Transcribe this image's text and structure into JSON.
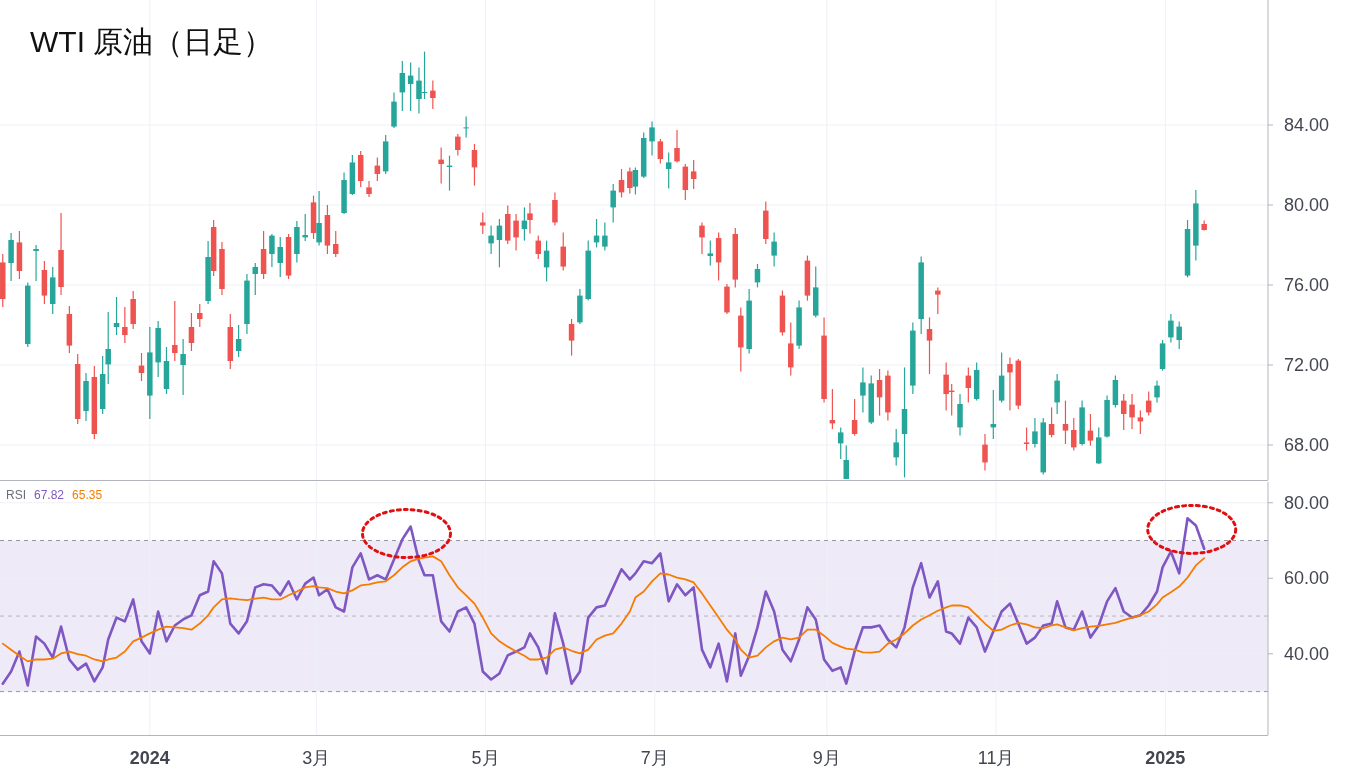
{
  "chart_data": [
    {
      "type": "candlestick",
      "title": "WTI 原油（日足）",
      "colors": [
        "#ef5350",
        "#26a69a",
        "#ef5350",
        "#26a69a",
        "#26a69a",
        "#ef5350",
        "#26a69a",
        "#ef5350",
        "#ef5350",
        "#ef5350",
        "#26a69a",
        "#ef5350",
        "#26a69a",
        "#26a69a",
        "#26a69a",
        "#ef5350",
        "#ef5350",
        "#ef5350",
        "#26a69a",
        "#26a69a",
        "#26a69a",
        "#ef5350",
        "#26a69a",
        "#ef5350",
        "#ef5350",
        "#26a69a",
        "#ef5350",
        "#ef5350",
        "#ef5350",
        "#26a69a",
        "#26a69a",
        "#26a69a",
        "#ef5350",
        "#26a69a",
        "#26a69a",
        "#ef5350",
        "#26a69a",
        "#26a69a",
        "#ef5350",
        "#26a69a",
        "#ef5350",
        "#ef5350",
        "#26a69a",
        "#26a69a",
        "#ef5350",
        "#ef5350",
        "#ef5350",
        "#26a69a",
        "#26a69a",
        "#26a69a",
        "#26a69a",
        "#26a69a",
        "#26a69a",
        "#ef5350",
        "#ef5350",
        "#26a69a",
        "#ef5350",
        "#26a69a",
        "#ef5350",
        "#ef5350",
        "#26a69a",
        "#26a69a",
        "#ef5350",
        "#ef5350",
        "#26a69a",
        "#ef5350",
        "#ef5350",
        "#26a69a",
        "#ef5350",
        "#ef5350",
        "#ef5350",
        "#26a69a",
        "#26a69a",
        "#26a69a",
        "#26a69a",
        "#26a69a",
        "#ef5350",
        "#ef5350",
        "#26a69a",
        "#26a69a",
        "#26a69a",
        "#ef5350",
        "#26a69a",
        "#ef5350",
        "#ef5350",
        "#ef5350",
        "#ef5350",
        "#26a69a",
        "#ef5350",
        "#ef5350",
        "#ef5350",
        "#ef5350",
        "#26a69a",
        "#26a69a",
        "#ef5350",
        "#26a69a",
        "#ef5350",
        "#ef5350",
        "#26a69a",
        "#ef5350",
        "#26a69a",
        "#ef5350",
        "#ef5350",
        "#26a69a",
        "#26a69a",
        "#ef5350",
        "#26a69a",
        "#26a69a",
        "#ef5350",
        "#ef5350",
        "#26a69a",
        "#26a69a",
        "#26a69a",
        "#26a69a",
        "#ef5350",
        "#ef5350",
        "#ef5350",
        "#ef5350",
        "#26a69a",
        "#ef5350",
        "#26a69a",
        "#ef5350",
        "#26a69a",
        "#26a69a",
        "#ef5350",
        "#ef5350",
        "#ef5350",
        "#26a69a",
        "#26a69a",
        "#ef5350",
        "#26a69a",
        "#ef5350",
        "#ef5350",
        "#26a69a",
        "#ef5350",
        "#26a69a",
        "#26a69a",
        "#26a69a",
        "#ef5350",
        "#ef5350",
        "#ef5350",
        "#ef5350",
        "#26a69a",
        "#26a69a",
        "#26a69a",
        "#26a69a",
        "#26a69a",
        "#26a69a",
        "#ef5350"
      ],
      "x": [
        "2023-11-09",
        "2023-11-12",
        "2023-11-15",
        "2023-11-18",
        "2023-11-21",
        "2023-11-24",
        "2023-11-27",
        "2023-11-30",
        "2023-12-03",
        "2023-12-06",
        "2023-12-09",
        "2023-12-12",
        "2023-12-15",
        "2023-12-17",
        "2023-12-20",
        "2023-12-23",
        "2023-12-26",
        "2023-12-29",
        "2024-01-01",
        "2024-01-04",
        "2024-01-07",
        "2024-01-10",
        "2024-01-13",
        "2024-01-16",
        "2024-01-19",
        "2024-01-22",
        "2024-01-24",
        "2024-01-27",
        "2024-01-30",
        "2024-02-02",
        "2024-02-05",
        "2024-02-08",
        "2024-02-11",
        "2024-02-14",
        "2024-02-17",
        "2024-02-20",
        "2024-02-23",
        "2024-02-26",
        "2024-02-29",
        "2024-03-02",
        "2024-03-05",
        "2024-03-08",
        "2024-03-11",
        "2024-03-14",
        "2024-03-17",
        "2024-03-20",
        "2024-03-23",
        "2024-03-26",
        "2024-03-29",
        "2024-04-01",
        "2024-04-04",
        "2024-04-07",
        "2024-04-09",
        "2024-04-12",
        "2024-04-15",
        "2024-04-18",
        "2024-04-21",
        "2024-04-24",
        "2024-04-27",
        "2024-04-30",
        "2024-05-03",
        "2024-05-06",
        "2024-05-09",
        "2024-05-12",
        "2024-05-15",
        "2024-05-17",
        "2024-05-20",
        "2024-05-23",
        "2024-05-26",
        "2024-05-29",
        "2024-06-01",
        "2024-06-04",
        "2024-06-07",
        "2024-06-10",
        "2024-06-13",
        "2024-06-16",
        "2024-06-19",
        "2024-06-22",
        "2024-06-24",
        "2024-06-27",
        "2024-06-30",
        "2024-07-03",
        "2024-07-06",
        "2024-07-09",
        "2024-07-12",
        "2024-07-15",
        "2024-07-18",
        "2024-07-21",
        "2024-07-24",
        "2024-07-27",
        "2024-07-30",
        "2024-08-01",
        "2024-08-04",
        "2024-08-07",
        "2024-08-10",
        "2024-08-13",
        "2024-08-16",
        "2024-08-19",
        "2024-08-22",
        "2024-08-25",
        "2024-08-28",
        "2024-08-31",
        "2024-09-03",
        "2024-09-06",
        "2024-09-08",
        "2024-09-11",
        "2024-09-14",
        "2024-09-17",
        "2024-09-20",
        "2024-09-23",
        "2024-09-26",
        "2024-09-29",
        "2024-10-02",
        "2024-10-05",
        "2024-10-08",
        "2024-10-11",
        "2024-10-14",
        "2024-10-16",
        "2024-10-19",
        "2024-10-22",
        "2024-10-25",
        "2024-10-28",
        "2024-10-31",
        "2024-11-03",
        "2024-11-06",
        "2024-11-09",
        "2024-11-12",
        "2024-11-15",
        "2024-11-18",
        "2024-11-21",
        "2024-11-23",
        "2024-11-26",
        "2024-11-29",
        "2024-12-02",
        "2024-12-05",
        "2024-12-08",
        "2024-12-11",
        "2024-12-14",
        "2024-12-17",
        "2024-12-20",
        "2024-12-23",
        "2024-12-26",
        "2024-12-29",
        "2024-12-31",
        "2025-01-03",
        "2025-01-06",
        "2025-01-09",
        "2025-01-12",
        "2025-01-15"
      ],
      "ohlc": [
        [
          77.13,
          77.55,
          74.9,
          75.3
        ],
        [
          77.1,
          78.6,
          76.2,
          78.25
        ],
        [
          78.13,
          78.7,
          76.3,
          76.7
        ],
        [
          73.05,
          76.13,
          72.9,
          75.97
        ],
        [
          77.7,
          78.0,
          76.2,
          77.8
        ],
        [
          76.75,
          77.2,
          75.05,
          75.47
        ],
        [
          75.05,
          76.9,
          74.55,
          76.38
        ],
        [
          77.75,
          79.6,
          75.5,
          75.9
        ],
        [
          74.55,
          74.95,
          72.6,
          72.97
        ],
        [
          72.05,
          72.55,
          69.05,
          69.3
        ],
        [
          69.7,
          71.6,
          69.2,
          71.2
        ],
        [
          71.4,
          71.95,
          68.3,
          68.55
        ],
        [
          69.8,
          72.45,
          69.55,
          71.55
        ],
        [
          72.03,
          74.65,
          71.05,
          72.8
        ],
        [
          73.9,
          75.4,
          73.5,
          74.1
        ],
        [
          73.9,
          74.9,
          73.1,
          73.5
        ],
        [
          75.3,
          75.7,
          73.8,
          74.05
        ],
        [
          71.97,
          72.6,
          71.2,
          71.6
        ],
        [
          70.47,
          73.9,
          69.3,
          72.63
        ],
        [
          72.13,
          74.2,
          71.4,
          73.85
        ],
        [
          70.8,
          72.9,
          70.55,
          72.2
        ],
        [
          73.0,
          75.2,
          72.2,
          72.6
        ],
        [
          72.0,
          73.3,
          70.5,
          72.55
        ],
        [
          73.9,
          74.6,
          72.7,
          73.1
        ],
        [
          74.6,
          75.05,
          73.9,
          74.3
        ],
        [
          75.2,
          78.2,
          75.05,
          77.4
        ],
        [
          78.9,
          79.25,
          76.45,
          76.7
        ],
        [
          77.8,
          78.15,
          75.5,
          75.8
        ],
        [
          73.9,
          74.55,
          71.8,
          72.2
        ],
        [
          72.7,
          74.0,
          72.4,
          73.3
        ],
        [
          74.05,
          76.55,
          73.55,
          76.22
        ],
        [
          76.55,
          77.1,
          75.5,
          76.9
        ],
        [
          77.8,
          78.7,
          76.3,
          76.55
        ],
        [
          77.55,
          78.55,
          76.9,
          78.47
        ],
        [
          77.1,
          78.4,
          76.4,
          77.9
        ],
        [
          78.4,
          78.55,
          76.3,
          76.47
        ],
        [
          77.55,
          79.2,
          77.13,
          78.9
        ],
        [
          78.38,
          79.55,
          78.2,
          78.5
        ],
        [
          80.13,
          80.47,
          78.3,
          78.6
        ],
        [
          78.13,
          80.7,
          77.97,
          79.1
        ],
        [
          79.5,
          80.0,
          77.55,
          77.97
        ],
        [
          78.05,
          78.7,
          77.4,
          77.55
        ],
        [
          79.6,
          81.63,
          79.55,
          81.25
        ],
        [
          80.55,
          82.5,
          80.5,
          82.13
        ],
        [
          82.5,
          82.7,
          80.9,
          81.2
        ],
        [
          80.88,
          81.2,
          80.4,
          80.55
        ],
        [
          81.97,
          82.38,
          81.2,
          81.55
        ],
        [
          81.68,
          83.5,
          81.55,
          83.18
        ],
        [
          83.92,
          85.63,
          83.85,
          85.17
        ],
        [
          85.63,
          87.2,
          84.7,
          86.6
        ],
        [
          86.05,
          87.13,
          84.7,
          86.47
        ],
        [
          85.3,
          86.88,
          84.58,
          86.22
        ],
        [
          85.6,
          87.67,
          85.3,
          85.65
        ],
        [
          85.72,
          86.22,
          84.8,
          85.35
        ],
        [
          82.27,
          82.88,
          81.08,
          82.05
        ],
        [
          81.9,
          82.47,
          80.72,
          81.97
        ],
        [
          83.42,
          83.55,
          82.47,
          82.75
        ],
        [
          83.85,
          84.42,
          83.38,
          83.88
        ],
        [
          82.75,
          83.05,
          80.97,
          81.88
        ],
        [
          79.13,
          79.63,
          78.55,
          78.97
        ],
        [
          78.08,
          78.97,
          77.55,
          78.47
        ],
        [
          78.25,
          79.3,
          76.88,
          78.97
        ],
        [
          79.55,
          79.97,
          78.05,
          78.22
        ],
        [
          79.22,
          79.55,
          77.72,
          78.38
        ],
        [
          78.8,
          79.88,
          78.22,
          79.22
        ],
        [
          79.58,
          80.1,
          78.58,
          79.25
        ],
        [
          78.22,
          78.47,
          77.3,
          77.55
        ],
        [
          76.88,
          78.22,
          76.18,
          77.72
        ],
        [
          80.25,
          80.63,
          78.97,
          79.13
        ],
        [
          77.92,
          78.63,
          76.72,
          76.92
        ],
        [
          74.05,
          74.3,
          72.47,
          73.22
        ],
        [
          74.13,
          75.8,
          74.05,
          75.47
        ],
        [
          75.3,
          78.22,
          75.22,
          77.72
        ],
        [
          78.13,
          79.3,
          77.88,
          78.47
        ],
        [
          77.92,
          79.13,
          77.72,
          78.47
        ],
        [
          79.88,
          81.05,
          79.13,
          80.72
        ],
        [
          81.25,
          81.8,
          80.38,
          80.63
        ],
        [
          81.68,
          81.88,
          80.58,
          80.85
        ],
        [
          80.92,
          81.88,
          80.52,
          81.75
        ],
        [
          81.42,
          83.63,
          81.35,
          83.35
        ],
        [
          83.18,
          84.18,
          82.47,
          83.88
        ],
        [
          83.18,
          83.3,
          82.08,
          82.3
        ],
        [
          81.8,
          82.63,
          80.83,
          82.13
        ],
        [
          82.85,
          83.75,
          82.13,
          82.18
        ],
        [
          81.92,
          82.05,
          80.25,
          80.75
        ],
        [
          81.68,
          82.25,
          80.8,
          81.3
        ],
        [
          78.97,
          79.13,
          77.55,
          78.38
        ],
        [
          77.45,
          78.22,
          76.97,
          77.58
        ],
        [
          78.35,
          78.63,
          76.22,
          77.13
        ],
        [
          75.92,
          76.05,
          74.55,
          74.63
        ],
        [
          78.55,
          78.85,
          75.88,
          76.27
        ],
        [
          74.47,
          74.88,
          71.68,
          72.88
        ],
        [
          72.8,
          75.8,
          72.58,
          75.22
        ],
        [
          76.13,
          77.05,
          75.88,
          76.8
        ],
        [
          79.72,
          80.18,
          78.05,
          78.3
        ],
        [
          77.47,
          78.63,
          76.92,
          78.17
        ],
        [
          75.47,
          75.72,
          73.47,
          73.63
        ],
        [
          73.08,
          74.13,
          71.47,
          71.88
        ],
        [
          72.97,
          75.22,
          72.8,
          74.88
        ],
        [
          77.22,
          77.47,
          75.22,
          75.47
        ],
        [
          74.47,
          76.92,
          74.38,
          75.88
        ],
        [
          73.47,
          74.38,
          70.13,
          70.3
        ],
        [
          69.25,
          70.8,
          68.8,
          69.08
        ],
        [
          68.08,
          68.88,
          67.3,
          68.63
        ],
        [
          66.3,
          67.97,
          66.3,
          67.25
        ],
        [
          69.25,
          70.3,
          68.47,
          68.55
        ],
        [
          70.47,
          71.88,
          69.63,
          71.13
        ],
        [
          69.13,
          71.47,
          69.05,
          71.08
        ],
        [
          71.25,
          71.8,
          69.47,
          70.38
        ],
        [
          71.47,
          71.72,
          69.22,
          69.63
        ],
        [
          67.38,
          68.8,
          66.97,
          68.13
        ],
        [
          68.55,
          71.88,
          66.38,
          69.8
        ],
        [
          70.97,
          74.13,
          70.55,
          73.72
        ],
        [
          74.3,
          77.42,
          73.55,
          77.13
        ],
        [
          73.8,
          74.38,
          71.55,
          73.22
        ],
        [
          75.72,
          75.88,
          74.55,
          75.52
        ],
        [
          71.52,
          72.13,
          69.72,
          70.55
        ],
        [
          70.72,
          71.05,
          69.47,
          70.65
        ],
        [
          68.88,
          70.55,
          68.47,
          70.05
        ],
        [
          71.47,
          71.88,
          70.13,
          70.85
        ],
        [
          70.3,
          72.13,
          70.22,
          71.75
        ],
        [
          68.02,
          68.55,
          66.72,
          67.13
        ],
        [
          68.88,
          70.75,
          68.3,
          69.05
        ],
        [
          70.22,
          72.63,
          70.13,
          71.47
        ],
        [
          72.05,
          72.38,
          69.72,
          71.63
        ],
        [
          72.22,
          72.3,
          69.8,
          69.97
        ],
        [
          68.13,
          68.88,
          67.72,
          68.05
        ],
        [
          68.05,
          69.35,
          67.88,
          68.68
        ],
        [
          66.63,
          69.35,
          66.52,
          69.13
        ],
        [
          69.05,
          69.88,
          68.38,
          68.5
        ],
        [
          70.13,
          71.55,
          69.55,
          71.22
        ],
        [
          69.05,
          70.22,
          68.05,
          68.72
        ],
        [
          68.75,
          69.35,
          67.72,
          67.88
        ],
        [
          68.05,
          70.22,
          67.97,
          69.88
        ],
        [
          68.72,
          69.55,
          67.97,
          68.22
        ],
        [
          67.08,
          68.88,
          67.05,
          68.38
        ],
        [
          68.42,
          70.47,
          68.38,
          70.25
        ],
        [
          70.0,
          71.47,
          69.88,
          71.25
        ],
        [
          70.22,
          70.55,
          68.75,
          69.55
        ],
        [
          70.02,
          70.55,
          68.8,
          69.38
        ],
        [
          69.38,
          69.72,
          68.55,
          69.18
        ],
        [
          70.22,
          70.68,
          69.47,
          69.63
        ],
        [
          70.38,
          71.22,
          70.13,
          70.97
        ],
        [
          71.8,
          73.25,
          71.72,
          73.08
        ],
        [
          73.38,
          74.55,
          73.13,
          74.22
        ],
        [
          73.25,
          74.18,
          72.8,
          73.92
        ],
        [
          76.47,
          79.25,
          76.38,
          78.8
        ],
        [
          77.97,
          80.75,
          77.22,
          80.08
        ],
        [
          79.05,
          79.22,
          78.72,
          78.75
        ]
      ],
      "xlim": [
        "2023-11-08",
        "2025-02-07"
      ],
      "xticks": [
        {
          "value": "2024-01-01",
          "label": null
        },
        {
          "value": "2024-03-01",
          "label": null
        },
        {
          "value": "2024-05-01",
          "label": null
        },
        {
          "value": "2024-07-01",
          "label": null
        },
        {
          "value": "2024-09-01",
          "label": null
        },
        {
          "value": "2024-11-01",
          "label": null
        },
        {
          "value": "2025-01-01",
          "label": null
        }
      ],
      "ylim": [
        66.25,
        90.25
      ],
      "yticks": [
        {
          "value": 68,
          "label": "68.00"
        },
        {
          "value": 72,
          "label": "72.00"
        },
        {
          "value": 76,
          "label": "76.00"
        },
        {
          "value": 80,
          "label": "80.00"
        },
        {
          "value": 84,
          "label": "84.00"
        }
      ],
      "tick_labels": "y",
      "grid": true
    },
    {
      "type": "line",
      "annotations": [
        "RSI"
      ],
      "legend": "top left",
      "x": [
        "2023-11-09",
        "2023-11-12",
        "2023-11-15",
        "2023-11-18",
        "2023-11-21",
        "2023-11-24",
        "2023-11-27",
        "2023-11-30",
        "2023-12-03",
        "2023-12-06",
        "2023-12-09",
        "2023-12-12",
        "2023-12-15",
        "2023-12-17",
        "2023-12-20",
        "2023-12-23",
        "2023-12-26",
        "2023-12-29",
        "2024-01-01",
        "2024-01-04",
        "2024-01-07",
        "2024-01-10",
        "2024-01-13",
        "2024-01-16",
        "2024-01-19",
        "2024-01-22",
        "2024-01-24",
        "2024-01-27",
        "2024-01-30",
        "2024-02-02",
        "2024-02-05",
        "2024-02-08",
        "2024-02-11",
        "2024-02-14",
        "2024-02-17",
        "2024-02-20",
        "2024-02-23",
        "2024-02-26",
        "2024-02-29",
        "2024-03-02",
        "2024-03-05",
        "2024-03-08",
        "2024-03-11",
        "2024-03-14",
        "2024-03-17",
        "2024-03-20",
        "2024-03-23",
        "2024-03-26",
        "2024-03-29",
        "2024-04-01",
        "2024-04-04",
        "2024-04-07",
        "2024-04-09",
        "2024-04-12",
        "2024-04-15",
        "2024-04-18",
        "2024-04-21",
        "2024-04-24",
        "2024-04-27",
        "2024-04-30",
        "2024-05-03",
        "2024-05-06",
        "2024-05-09",
        "2024-05-12",
        "2024-05-15",
        "2024-05-17",
        "2024-05-20",
        "2024-05-23",
        "2024-05-26",
        "2024-05-29",
        "2024-06-01",
        "2024-06-04",
        "2024-06-07",
        "2024-06-10",
        "2024-06-13",
        "2024-06-16",
        "2024-06-19",
        "2024-06-22",
        "2024-06-24",
        "2024-06-27",
        "2024-06-30",
        "2024-07-03",
        "2024-07-06",
        "2024-07-09",
        "2024-07-12",
        "2024-07-15",
        "2024-07-18",
        "2024-07-21",
        "2024-07-24",
        "2024-07-27",
        "2024-07-30",
        "2024-08-01",
        "2024-08-04",
        "2024-08-07",
        "2024-08-10",
        "2024-08-13",
        "2024-08-16",
        "2024-08-19",
        "2024-08-22",
        "2024-08-25",
        "2024-08-28",
        "2024-08-31",
        "2024-09-03",
        "2024-09-06",
        "2024-09-08",
        "2024-09-11",
        "2024-09-14",
        "2024-09-17",
        "2024-09-20",
        "2024-09-23",
        "2024-09-26",
        "2024-09-29",
        "2024-10-02",
        "2024-10-05",
        "2024-10-08",
        "2024-10-11",
        "2024-10-14",
        "2024-10-16",
        "2024-10-19",
        "2024-10-22",
        "2024-10-25",
        "2024-10-28",
        "2024-10-31",
        "2024-11-03",
        "2024-11-06",
        "2024-11-09",
        "2024-11-12",
        "2024-11-15",
        "2024-11-18",
        "2024-11-21",
        "2024-11-23",
        "2024-11-26",
        "2024-11-29",
        "2024-12-02",
        "2024-12-05",
        "2024-12-08",
        "2024-12-11",
        "2024-12-14",
        "2024-12-17",
        "2024-12-20",
        "2024-12-23",
        "2024-12-26",
        "2024-12-29",
        "2024-12-31",
        "2025-01-03",
        "2025-01-06",
        "2025-01-09",
        "2025-01-12",
        "2025-01-15"
      ],
      "series": [
        {
          "name": "67.82",
          "color": "#7e57c2",
          "values": [
            32.1,
            35.3,
            40.6,
            31.6,
            44.6,
            42.7,
            39.0,
            47.2,
            38.5,
            35.8,
            37.4,
            32.7,
            36.4,
            43.8,
            49.6,
            48.6,
            54.4,
            43.3,
            40.1,
            51.2,
            43.3,
            47.5,
            49.1,
            50.2,
            55.5,
            56.5,
            64.5,
            61.3,
            48.0,
            45.4,
            48.6,
            57.6,
            58.4,
            58.1,
            55.5,
            59.2,
            54.4,
            58.6,
            60.2,
            55.5,
            57.1,
            52.3,
            51.2,
            62.9,
            66.6,
            59.7,
            60.8,
            59.7,
            65.0,
            70.3,
            73.7,
            64.5,
            60.8,
            60.8,
            48.6,
            45.9,
            51.2,
            52.3,
            48.0,
            35.3,
            33.2,
            34.8,
            39.6,
            40.6,
            41.7,
            45.4,
            41.7,
            34.8,
            50.7,
            42.7,
            32.1,
            35.3,
            49.6,
            52.3,
            52.8,
            57.6,
            62.4,
            59.7,
            61.3,
            64.5,
            64.0,
            66.6,
            53.9,
            58.4,
            55.5,
            57.6,
            41.1,
            36.4,
            42.7,
            32.7,
            45.4,
            34.2,
            39.5,
            47.0,
            56.5,
            51.2,
            41.1,
            38.0,
            43.8,
            52.3,
            49.1,
            38.5,
            35.5,
            36.4,
            32.1,
            40.6,
            47.0,
            47.0,
            47.5,
            43.8,
            41.7,
            47.0,
            57.6,
            64.0,
            54.9,
            59.2,
            45.9,
            45.4,
            42.7,
            49.6,
            47.0,
            40.6,
            45.9,
            51.2,
            53.3,
            48.0,
            42.7,
            44.3,
            47.5,
            48.0,
            53.9,
            47.0,
            46.4,
            51.2,
            44.3,
            47.5,
            53.9,
            57.4,
            51.2,
            49.6,
            50.2,
            52.8,
            56.5,
            62.9,
            67.1,
            61.3,
            75.9,
            74.0,
            67.82
          ]
        },
        {
          "name": "65.35",
          "color": "#f57c00",
          "values": [
            42.7,
            41.1,
            39.5,
            38.0,
            38.5,
            38.5,
            38.7,
            40.1,
            40.6,
            39.9,
            39.5,
            38.5,
            38.0,
            38.5,
            39.0,
            40.6,
            43.3,
            44.3,
            45.4,
            46.4,
            47.2,
            47.0,
            46.8,
            46.4,
            48.0,
            50.2,
            52.3,
            54.4,
            54.7,
            54.4,
            54.2,
            54.6,
            54.9,
            54.4,
            54.4,
            55.5,
            56.5,
            57.6,
            57.9,
            57.6,
            57.4,
            56.5,
            56.0,
            56.8,
            58.1,
            58.4,
            58.9,
            59.2,
            60.8,
            62.9,
            64.5,
            65.2,
            65.5,
            65.8,
            64.5,
            60.8,
            57.6,
            55.5,
            53.3,
            49.6,
            45.4,
            43.3,
            41.9,
            40.6,
            39.5,
            38.5,
            38.5,
            39.0,
            41.1,
            41.7,
            40.8,
            40.1,
            41.1,
            43.8,
            44.8,
            45.4,
            48.0,
            51.2,
            54.9,
            56.5,
            59.2,
            61.3,
            61.0,
            60.2,
            59.7,
            58.9,
            56.0,
            52.8,
            49.6,
            46.4,
            43.8,
            41.1,
            39.0,
            39.5,
            41.7,
            43.3,
            44.3,
            43.8,
            44.3,
            46.4,
            46.4,
            44.8,
            42.9,
            41.9,
            41.4,
            41.1,
            40.4,
            40.3,
            40.6,
            42.7,
            43.8,
            45.4,
            47.5,
            49.1,
            50.2,
            51.4,
            52.3,
            52.8,
            52.8,
            52.3,
            50.2,
            48.0,
            46.1,
            46.4,
            47.5,
            48.2,
            47.8,
            47.0,
            46.8,
            47.5,
            47.8,
            47.0,
            46.2,
            46.8,
            47.2,
            47.4,
            47.8,
            48.2,
            48.9,
            49.6,
            50.2,
            51.2,
            53.1,
            54.9,
            56.3,
            57.8,
            60.2,
            63.4,
            65.35
          ]
        }
      ],
      "xlim": [
        "2023-11-08",
        "2025-02-07"
      ],
      "xticks": [
        {
          "value": "2024-01-01",
          "label": "2024"
        },
        {
          "value": "2024-03-01",
          "label": "3月"
        },
        {
          "value": "2024-05-01",
          "label": "5月"
        },
        {
          "value": "2024-07-01",
          "label": "7月"
        },
        {
          "value": "2024-09-01",
          "label": "9月"
        },
        {
          "value": "2024-11-01",
          "label": "11月"
        },
        {
          "value": "2025-01-01",
          "label": "2025"
        }
      ],
      "ylim": [
        18.5,
        85.5
      ],
      "yticks": [
        {
          "value": 40,
          "label": "40.00"
        },
        {
          "value": 60,
          "label": "60.00"
        },
        {
          "value": 80,
          "label": "80.00"
        }
      ],
      "ref_lines": [
        {
          "axis": "y",
          "value": 70,
          "color": "#9598a1",
          "line_style": "dashed"
        },
        {
          "axis": "y",
          "value": 50,
          "color": "#b2b5be",
          "line_style": "dashed"
        },
        {
          "axis": "y",
          "value": 30,
          "color": "#9598a1",
          "line_style": "dashed"
        }
      ],
      "bands": [
        {
          "axis": "y",
          "from": 30,
          "to": 70,
          "color": "#efeaf8"
        }
      ],
      "grid": true
    }
  ]
}
